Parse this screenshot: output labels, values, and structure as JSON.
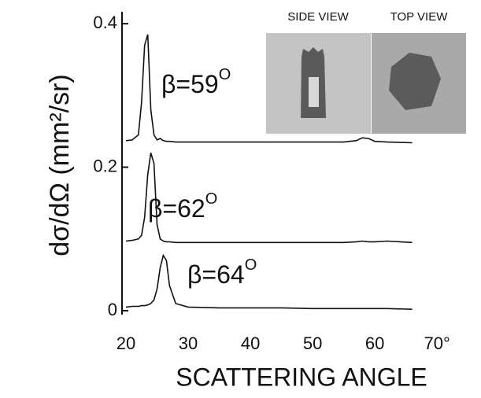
{
  "chart_data": {
    "type": "line",
    "y_label": "dσ/dΩ (mm²/sr)",
    "x_label": "SCATTERING ANGLE",
    "x": [
      20,
      21,
      22,
      22.5,
      23,
      23.5,
      24,
      24.5,
      25,
      25.5,
      26,
      26.5,
      27,
      28,
      30,
      35,
      40,
      45,
      50,
      55,
      57,
      58,
      59,
      60,
      62,
      66
    ],
    "series": [
      {
        "name": "β=59",
        "color": "#111111",
        "values": [
          0.237,
          0.238,
          0.245,
          0.29,
          0.37,
          0.385,
          0.28,
          0.245,
          0.238,
          0.24,
          0.237,
          0.236,
          0.236,
          0.235,
          0.235,
          0.235,
          0.235,
          0.235,
          0.235,
          0.235,
          0.237,
          0.241,
          0.24,
          0.236,
          0.235,
          0.234
        ]
      },
      {
        "name": "β=62",
        "color": "#111111",
        "values": [
          0.097,
          0.098,
          0.1,
          0.105,
          0.13,
          0.19,
          0.22,
          0.205,
          0.12,
          0.1,
          0.097,
          0.096,
          0.096,
          0.095,
          0.095,
          0.095,
          0.095,
          0.095,
          0.095,
          0.095,
          0.096,
          0.097,
          0.096,
          0.096,
          0.097,
          0.095
        ]
      },
      {
        "name": "β=64",
        "color": "#111111",
        "values": [
          0.005,
          0.006,
          0.006,
          0.007,
          0.007,
          0.008,
          0.01,
          0.015,
          0.03,
          0.06,
          0.077,
          0.07,
          0.035,
          0.01,
          0.005,
          0.004,
          0.004,
          0.004,
          0.003,
          0.003,
          0.003,
          0.003,
          0.003,
          0.003,
          0.003,
          0.002
        ]
      }
    ],
    "annotation_sup": "O",
    "xlim": [
      20,
      72
    ],
    "ylim": [
      0,
      0.41
    ],
    "xticks": [
      20,
      30,
      40,
      50,
      60,
      {
        "value": 70,
        "label": "70°"
      }
    ],
    "yticks": [
      0,
      0.2,
      0.4
    ],
    "inset_labels": [
      "SIDE VIEW",
      "TOP VIEW"
    ]
  }
}
